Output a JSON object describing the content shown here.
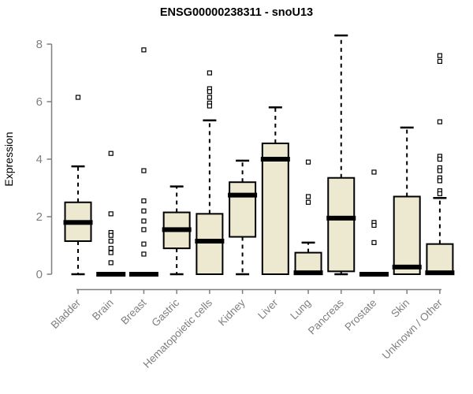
{
  "chart_data": {
    "type": "boxplot",
    "title": "ENSG00000238311 - snoU13",
    "ylabel": "Expression",
    "xlabel": "",
    "ylim": [
      0,
      8.4
    ],
    "yticks": [
      0,
      2,
      4,
      6,
      8
    ],
    "grid": false,
    "legend": "none",
    "background_color": "#FFFFFF",
    "box_fill_color": "#EDE8D0",
    "box_line_color": "#000000",
    "axis_color": "#7F7F7F",
    "categories": [
      "Bladder",
      "Brain",
      "Breast",
      "Gastric",
      "Hematopoietic cells",
      "Kidney",
      "Liver",
      "Lung",
      "Pancreas",
      "Prostate",
      "Skin",
      "Unknown / Other"
    ],
    "boxes": [
      {
        "category": "Bladder",
        "low": 0,
        "q1": 1.15,
        "median": 1.8,
        "q3": 2.5,
        "high": 3.75,
        "outliers": [
          6.15
        ]
      },
      {
        "category": "Brain",
        "low": 0,
        "q1": 0,
        "median": 0,
        "q3": 0,
        "high": 0,
        "outliers": [
          4.2,
          2.1,
          1.45,
          1.35,
          1.15,
          0.9,
          0.75,
          0.4
        ]
      },
      {
        "category": "Breast",
        "low": 0,
        "q1": 0,
        "median": 0,
        "q3": 0,
        "high": 0,
        "outliers": [
          7.8,
          3.6,
          2.55,
          2.2,
          1.85,
          1.55,
          1.05,
          0.7
        ]
      },
      {
        "category": "Gastric",
        "low": 0,
        "q1": 0.9,
        "median": 1.55,
        "q3": 2.15,
        "high": 3.05,
        "outliers": []
      },
      {
        "category": "Hematopoietic cells",
        "low": 0,
        "q1": 0,
        "median": 1.15,
        "q3": 2.1,
        "high": 5.35,
        "outliers": [
          7.0,
          6.45,
          6.35,
          6.15,
          5.95,
          5.85
        ]
      },
      {
        "category": "Kidney",
        "low": 0,
        "q1": 1.3,
        "median": 2.75,
        "q3": 3.2,
        "high": 3.95,
        "outliers": []
      },
      {
        "category": "Liver",
        "low": 0,
        "q1": 0,
        "median": 4.0,
        "q3": 4.55,
        "high": 5.8,
        "outliers": []
      },
      {
        "category": "Lung",
        "low": 0,
        "q1": 0,
        "median": 0.05,
        "q3": 0.75,
        "high": 1.1,
        "outliers": [
          3.9,
          2.7,
          2.5
        ]
      },
      {
        "category": "Pancreas",
        "low": 0,
        "q1": 0.1,
        "median": 1.95,
        "q3": 3.35,
        "high": 8.3,
        "outliers": []
      },
      {
        "category": "Prostate",
        "low": 0,
        "q1": 0,
        "median": 0,
        "q3": 0,
        "high": 0,
        "outliers": [
          3.55,
          1.8,
          1.7,
          1.1
        ]
      },
      {
        "category": "Skin",
        "low": 0,
        "q1": 0,
        "median": 0.25,
        "q3": 2.7,
        "high": 5.1,
        "outliers": []
      },
      {
        "category": "Unknown / Other",
        "low": 0,
        "q1": 0,
        "median": 0.05,
        "q3": 1.05,
        "high": 2.65,
        "outliers": [
          7.6,
          7.4,
          5.3,
          4.1,
          4.0,
          3.7,
          3.6,
          3.35,
          3.25,
          2.9,
          2.8
        ]
      }
    ]
  }
}
